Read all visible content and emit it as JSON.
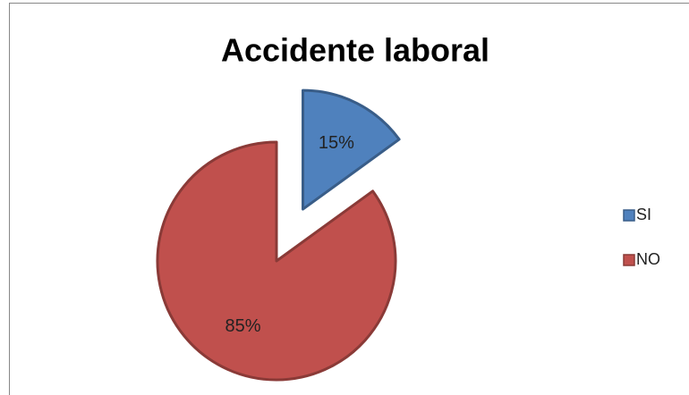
{
  "chart_data": {
    "type": "pie",
    "title": "Accidente laboral",
    "categories": [
      "SI",
      "NO"
    ],
    "values": [
      15,
      85
    ],
    "value_labels": [
      "15%",
      "85%"
    ],
    "colors": [
      "#4f81bd",
      "#c0504d"
    ],
    "legend": "right",
    "exploded": [
      true,
      false
    ]
  }
}
